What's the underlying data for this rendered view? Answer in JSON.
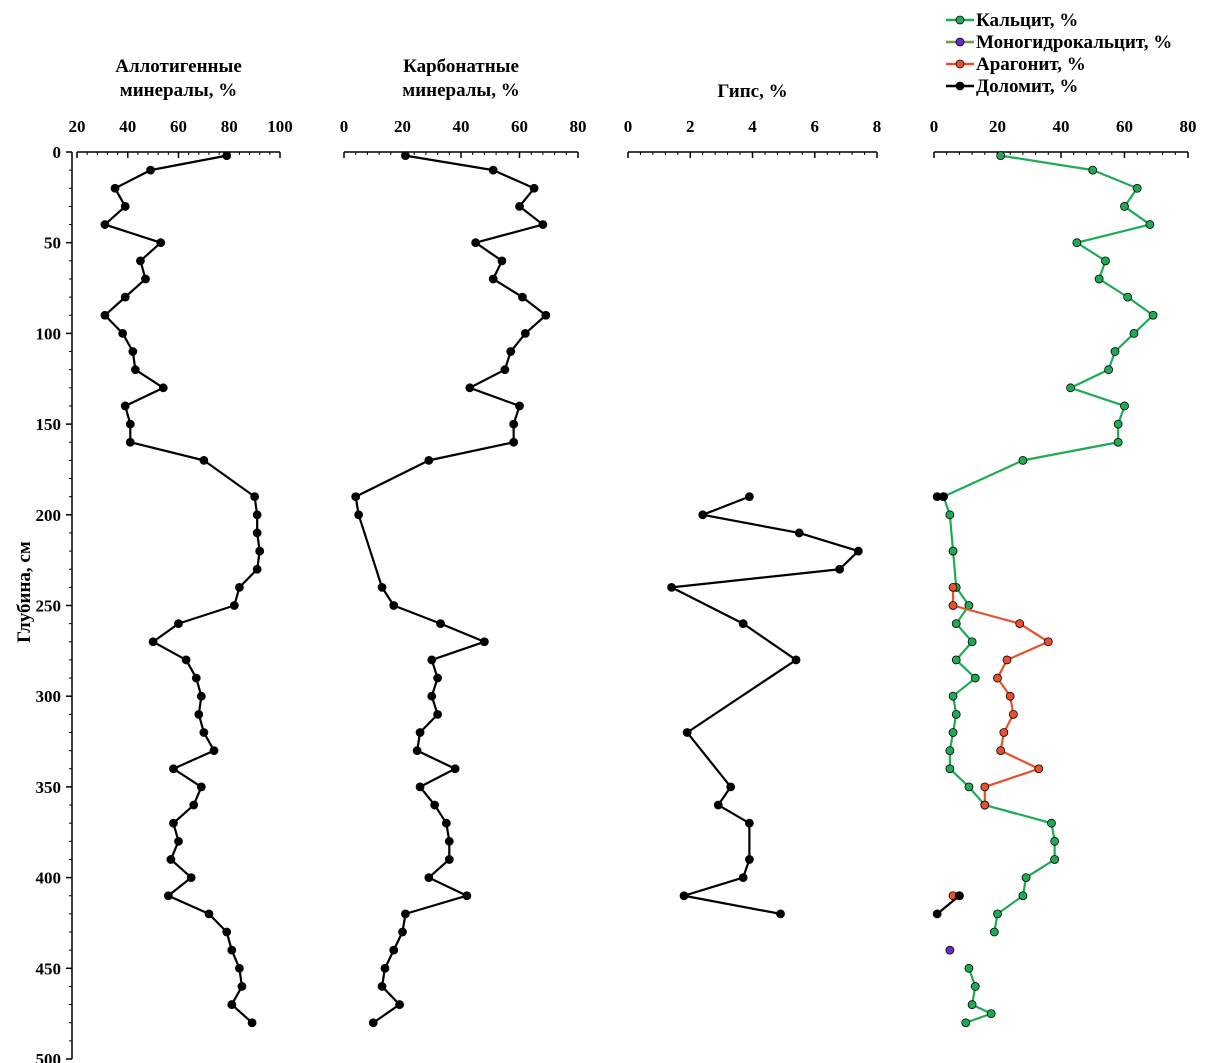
{
  "chart_data": {
    "type": "line",
    "y_axis": {
      "label": "Глубина, см",
      "range": [
        0,
        500
      ],
      "ticks": [
        0,
        50,
        100,
        150,
        200,
        250,
        300,
        350,
        400,
        450,
        500
      ],
      "inverted": true
    },
    "panels": [
      {
        "id": "allo",
        "title_lines": [
          "Аллотигенные",
          "минералы, %"
        ],
        "x_range": [
          20,
          100
        ],
        "x_ticks": [
          20,
          40,
          60,
          80,
          100
        ],
        "series": [
          {
            "color": "#000000",
            "x": [
              79,
              49,
              35,
              39,
              31,
              53,
              45,
              47,
              39,
              31,
              38,
              42,
              43,
              54,
              39,
              41,
              41,
              70,
              90,
              91,
              91,
              92,
              91,
              84,
              82,
              60,
              50,
              63,
              67,
              69,
              68,
              70,
              74,
              58,
              69,
              66,
              58,
              60,
              57,
              65,
              56,
              72,
              79,
              81,
              84,
              85,
              81,
              89
            ],
            "y": [
              2,
              10,
              20,
              30,
              40,
              50,
              60,
              70,
              80,
              90,
              100,
              110,
              120,
              130,
              140,
              150,
              160,
              170,
              190,
              200,
              210,
              220,
              230,
              240,
              250,
              260,
              270,
              280,
              290,
              300,
              310,
              320,
              330,
              340,
              350,
              360,
              370,
              380,
              390,
              400,
              410,
              420,
              430,
              440,
              450,
              460,
              470,
              480
            ]
          }
        ]
      },
      {
        "id": "carb",
        "title_lines": [
          "Карбонатные",
          "минералы, %"
        ],
        "x_range": [
          0,
          80
        ],
        "x_ticks": [
          0,
          20,
          40,
          60,
          80
        ],
        "series": [
          {
            "color": "#000000",
            "x": [
              21,
              51,
              65,
              60,
              68,
              45,
              54,
              51,
              61,
              69,
              62,
              57,
              55,
              43,
              60,
              58,
              58,
              29,
              4,
              5,
              13,
              17,
              33,
              48,
              30,
              32,
              30,
              32,
              26,
              25,
              38,
              26,
              31,
              35,
              36,
              36,
              29,
              42,
              21,
              20,
              17,
              14,
              13,
              19,
              10
            ],
            "y": [
              2,
              10,
              20,
              30,
              40,
              50,
              60,
              70,
              80,
              90,
              100,
              110,
              120,
              130,
              140,
              150,
              160,
              170,
              190,
              200,
              240,
              250,
              260,
              270,
              280,
              290,
              300,
              310,
              320,
              330,
              340,
              350,
              360,
              370,
              380,
              390,
              400,
              410,
              420,
              430,
              440,
              450,
              460,
              470,
              480
            ]
          }
        ]
      },
      {
        "id": "gyps",
        "title_lines": [
          "Гипс, %"
        ],
        "x_range": [
          0,
          8
        ],
        "x_ticks": [
          0,
          2,
          4,
          6,
          8
        ],
        "series": [
          {
            "color": "#000000",
            "x": [
              3.9,
              2.4,
              5.5,
              7.4,
              6.8,
              1.4,
              3.7,
              5.4,
              1.9,
              3.3,
              2.9,
              3.9,
              3.9,
              3.7,
              1.8,
              4.9
            ],
            "y": [
              190,
              200,
              210,
              220,
              230,
              240,
              260,
              280,
              320,
              350,
              360,
              370,
              390,
              400,
              410,
              420
            ]
          }
        ]
      },
      {
        "id": "minerals",
        "title_lines": [],
        "x_range": [
          0,
          80
        ],
        "x_ticks": [
          0,
          20,
          40,
          60,
          80
        ],
        "series": [
          {
            "name": "Кальцит, %",
            "color": "#1faa55",
            "segments": [
              {
                "x": [
                  21,
                  50,
                  64,
                  60,
                  68,
                  45,
                  54,
                  52,
                  61,
                  69,
                  63,
                  57,
                  55,
                  43,
                  60,
                  58,
                  58,
                  28,
                  3,
                  5,
                  6,
                  7,
                  11,
                  7,
                  12,
                  7,
                  13,
                  6,
                  7,
                  6,
                  5,
                  5,
                  11,
                  16,
                  37,
                  38,
                  38,
                  29,
                  28,
                  20,
                  19
                ],
                "y": [
                  2,
                  10,
                  20,
                  30,
                  40,
                  50,
                  60,
                  70,
                  80,
                  90,
                  100,
                  110,
                  120,
                  130,
                  140,
                  150,
                  160,
                  170,
                  190,
                  200,
                  220,
                  240,
                  250,
                  260,
                  270,
                  280,
                  290,
                  300,
                  310,
                  320,
                  330,
                  340,
                  350,
                  360,
                  370,
                  380,
                  390,
                  400,
                  410,
                  420,
                  430
                ]
              },
              {
                "x": [
                  11,
                  13,
                  12,
                  18,
                  10
                ],
                "y": [
                  450,
                  460,
                  470,
                  475,
                  480
                ]
              }
            ]
          },
          {
            "name": "Моногидрокальцит, %",
            "color": "#6e9b4a",
            "marker_color": "#6a2cc8",
            "segments": [
              {
                "x": [
                  5
                ],
                "y": [
                  440
                ]
              }
            ]
          },
          {
            "name": "Арагонит, %",
            "color": "#e8502d",
            "segments": [
              {
                "x": [
                  6,
                  6,
                  27,
                  36,
                  23,
                  20,
                  24,
                  25,
                  22,
                  21,
                  33,
                  16,
                  16
                ],
                "y": [
                  240,
                  250,
                  260,
                  270,
                  280,
                  290,
                  300,
                  310,
                  320,
                  330,
                  340,
                  350,
                  360
                ]
              },
              {
                "x": [
                  6,
                  8
                ],
                "y": [
                  410,
                  410
                ]
              }
            ]
          },
          {
            "name": "Доломит, %",
            "color": "#000000",
            "segments": [
              {
                "x": [
                  1,
                  3
                ],
                "y": [
                  190,
                  190
                ]
              },
              {
                "x": [
                  1,
                  8
                ],
                "y": [
                  420,
                  410
                ]
              }
            ]
          }
        ]
      }
    ],
    "legend": {
      "position": "top-right",
      "entries": [
        "Кальцит, %",
        "Моногидрокальцит, %",
        "Арагонит, %",
        "Доломит, %"
      ]
    }
  }
}
